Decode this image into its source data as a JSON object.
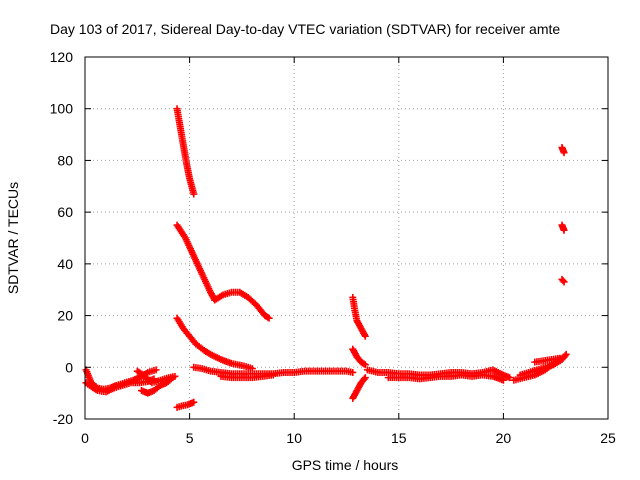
{
  "chart_data": {
    "type": "scatter",
    "title": "Day 103 of 2017, Sidereal Day-to-day VTEC variation (SDTVAR) for receiver amte",
    "xlabel": "GPS time / hours",
    "ylabel": "SDTVAR / TECUs",
    "xlim": [
      0,
      25
    ],
    "ylim": [
      -20,
      120
    ],
    "xticks": [
      0,
      5,
      10,
      15,
      20,
      25
    ],
    "yticks": [
      -20,
      0,
      20,
      40,
      60,
      80,
      100,
      120
    ],
    "grid": true,
    "marker": "plus",
    "color": "#ff0000",
    "segments": [
      {
        "name": "early-low-a",
        "points": [
          [
            0.05,
            -1
          ],
          [
            0.3,
            -6
          ],
          [
            0.6,
            -8
          ],
          [
            0.9,
            -8.5
          ],
          [
            1.2,
            -8
          ],
          [
            1.5,
            -7
          ],
          [
            1.9,
            -6
          ],
          [
            2.3,
            -5
          ],
          [
            2.6,
            -4
          ],
          [
            3.0,
            -2
          ],
          [
            3.4,
            -1
          ]
        ]
      },
      {
        "name": "early-low-b",
        "points": [
          [
            0.05,
            -6
          ],
          [
            0.3,
            -7.5
          ],
          [
            0.6,
            -9
          ],
          [
            1.0,
            -9.5
          ],
          [
            1.4,
            -8
          ],
          [
            1.8,
            -7
          ],
          [
            2.2,
            -6
          ],
          [
            2.6,
            -6
          ],
          [
            3.0,
            -5.5
          ],
          [
            3.3,
            -4.5
          ]
        ]
      },
      {
        "name": "early-low-c",
        "points": [
          [
            2.7,
            -9
          ],
          [
            3.0,
            -10
          ],
          [
            3.3,
            -9
          ],
          [
            3.6,
            -7
          ],
          [
            3.9,
            -6
          ],
          [
            4.2,
            -4
          ]
        ]
      },
      {
        "name": "early-low-d",
        "points": [
          [
            2.5,
            -1.5
          ],
          [
            2.8,
            -3
          ],
          [
            3.2,
            -6
          ],
          [
            3.6,
            -5
          ],
          [
            4.0,
            -4
          ],
          [
            4.3,
            -3.5
          ]
        ]
      },
      {
        "name": "neg-15",
        "points": [
          [
            4.4,
            -15.5
          ],
          [
            4.6,
            -15
          ],
          [
            4.9,
            -14.5
          ],
          [
            5.2,
            -13.5
          ]
        ]
      },
      {
        "name": "arc-100",
        "points": [
          [
            4.4,
            100
          ],
          [
            4.55,
            93
          ],
          [
            4.7,
            86
          ],
          [
            4.85,
            79
          ],
          [
            5.0,
            73
          ],
          [
            5.2,
            67
          ]
        ]
      },
      {
        "name": "arc-55",
        "points": [
          [
            4.4,
            55
          ],
          [
            4.8,
            50
          ],
          [
            5.2,
            43
          ],
          [
            5.6,
            36
          ],
          [
            6.0,
            29
          ],
          [
            6.2,
            26
          ]
        ]
      },
      {
        "name": "arc-28",
        "points": [
          [
            6.2,
            26
          ],
          [
            6.6,
            28
          ],
          [
            7.0,
            29
          ],
          [
            7.4,
            29
          ],
          [
            7.8,
            27
          ],
          [
            8.2,
            24
          ],
          [
            8.6,
            20
          ],
          [
            8.8,
            19
          ]
        ]
      },
      {
        "name": "decay-19",
        "points": [
          [
            4.4,
            19
          ],
          [
            4.7,
            15
          ],
          [
            5.0,
            12
          ],
          [
            5.3,
            9
          ],
          [
            5.7,
            6.5
          ],
          [
            6.0,
            5
          ],
          [
            6.5,
            3
          ],
          [
            7.0,
            1.5
          ],
          [
            7.6,
            0.5
          ],
          [
            8.0,
            -0.5
          ]
        ]
      },
      {
        "name": "baseline-mid",
        "points": [
          [
            5.2,
            0
          ],
          [
            5.6,
            -0.5
          ],
          [
            6.0,
            -1.5
          ],
          [
            6.5,
            -2
          ],
          [
            7.0,
            -2.5
          ],
          [
            7.5,
            -2.5
          ],
          [
            8.0,
            -2.5
          ],
          [
            8.5,
            -2.5
          ],
          [
            9.0,
            -2.5
          ],
          [
            9.5,
            -2
          ],
          [
            10.0,
            -2
          ],
          [
            10.5,
            -1.5
          ],
          [
            11.0,
            -1.5
          ],
          [
            11.5,
            -1.5
          ],
          [
            12.0,
            -1.5
          ],
          [
            12.5,
            -1.5
          ],
          [
            12.8,
            -2
          ]
        ]
      },
      {
        "name": "baseline-mid-b",
        "points": [
          [
            6.5,
            -3.5
          ],
          [
            7.0,
            -4
          ],
          [
            7.5,
            -4
          ],
          [
            8.0,
            -4
          ],
          [
            8.5,
            -3.5
          ],
          [
            9.0,
            -3
          ]
        ]
      },
      {
        "name": "spike-13-a",
        "points": [
          [
            12.8,
            27
          ],
          [
            12.9,
            22
          ],
          [
            13.0,
            18
          ],
          [
            13.2,
            15
          ],
          [
            13.4,
            12
          ]
        ]
      },
      {
        "name": "spike-13-b",
        "points": [
          [
            12.8,
            7
          ],
          [
            13.0,
            4
          ],
          [
            13.2,
            2
          ],
          [
            13.4,
            1
          ]
        ]
      },
      {
        "name": "spike-13-c",
        "points": [
          [
            12.8,
            -12
          ],
          [
            13.0,
            -9
          ],
          [
            13.2,
            -6
          ],
          [
            13.4,
            -4
          ]
        ]
      },
      {
        "name": "baseline-late",
        "points": [
          [
            13.5,
            -1
          ],
          [
            14.0,
            -2
          ],
          [
            14.5,
            -2
          ],
          [
            15.0,
            -2.5
          ],
          [
            15.5,
            -2.5
          ],
          [
            16.0,
            -3
          ],
          [
            16.5,
            -3
          ],
          [
            17.0,
            -2.5
          ],
          [
            17.5,
            -2
          ],
          [
            18.0,
            -2
          ],
          [
            18.5,
            -2.5
          ],
          [
            19.0,
            -2
          ],
          [
            19.5,
            -1
          ],
          [
            20.0,
            -3
          ],
          [
            20.3,
            -4
          ]
        ]
      },
      {
        "name": "baseline-late-b",
        "points": [
          [
            14.5,
            -4
          ],
          [
            15.0,
            -4
          ],
          [
            15.5,
            -4
          ],
          [
            16.0,
            -4.5
          ],
          [
            16.5,
            -4
          ],
          [
            17.0,
            -3.5
          ],
          [
            17.5,
            -3.5
          ],
          [
            18.0,
            -3
          ],
          [
            18.5,
            -3.5
          ],
          [
            19.0,
            -3
          ],
          [
            19.5,
            -3.5
          ],
          [
            20.0,
            -5
          ]
        ]
      },
      {
        "name": "rise-21-a",
        "points": [
          [
            20.8,
            -3
          ],
          [
            21.2,
            -2
          ],
          [
            21.6,
            -1
          ],
          [
            22.0,
            0
          ],
          [
            22.4,
            1
          ],
          [
            22.8,
            3
          ],
          [
            23.0,
            5
          ]
        ]
      },
      {
        "name": "rise-21-b",
        "points": [
          [
            20.5,
            -5
          ],
          [
            21.0,
            -4
          ],
          [
            21.5,
            -3
          ],
          [
            22.0,
            -1
          ],
          [
            22.5,
            2
          ],
          [
            22.9,
            4
          ]
        ]
      },
      {
        "name": "rise-21-c",
        "points": [
          [
            21.5,
            2
          ],
          [
            21.9,
            2.5
          ],
          [
            22.3,
            3
          ],
          [
            22.7,
            3.5
          ]
        ]
      },
      {
        "name": "late-84",
        "points": [
          [
            22.8,
            85
          ],
          [
            22.85,
            84
          ],
          [
            22.9,
            83
          ]
        ]
      },
      {
        "name": "late-54",
        "points": [
          [
            22.8,
            55
          ],
          [
            22.85,
            54
          ],
          [
            22.9,
            53
          ]
        ]
      },
      {
        "name": "late-33",
        "points": [
          [
            22.8,
            34
          ],
          [
            22.85,
            33.5
          ],
          [
            22.9,
            33
          ]
        ]
      }
    ]
  }
}
